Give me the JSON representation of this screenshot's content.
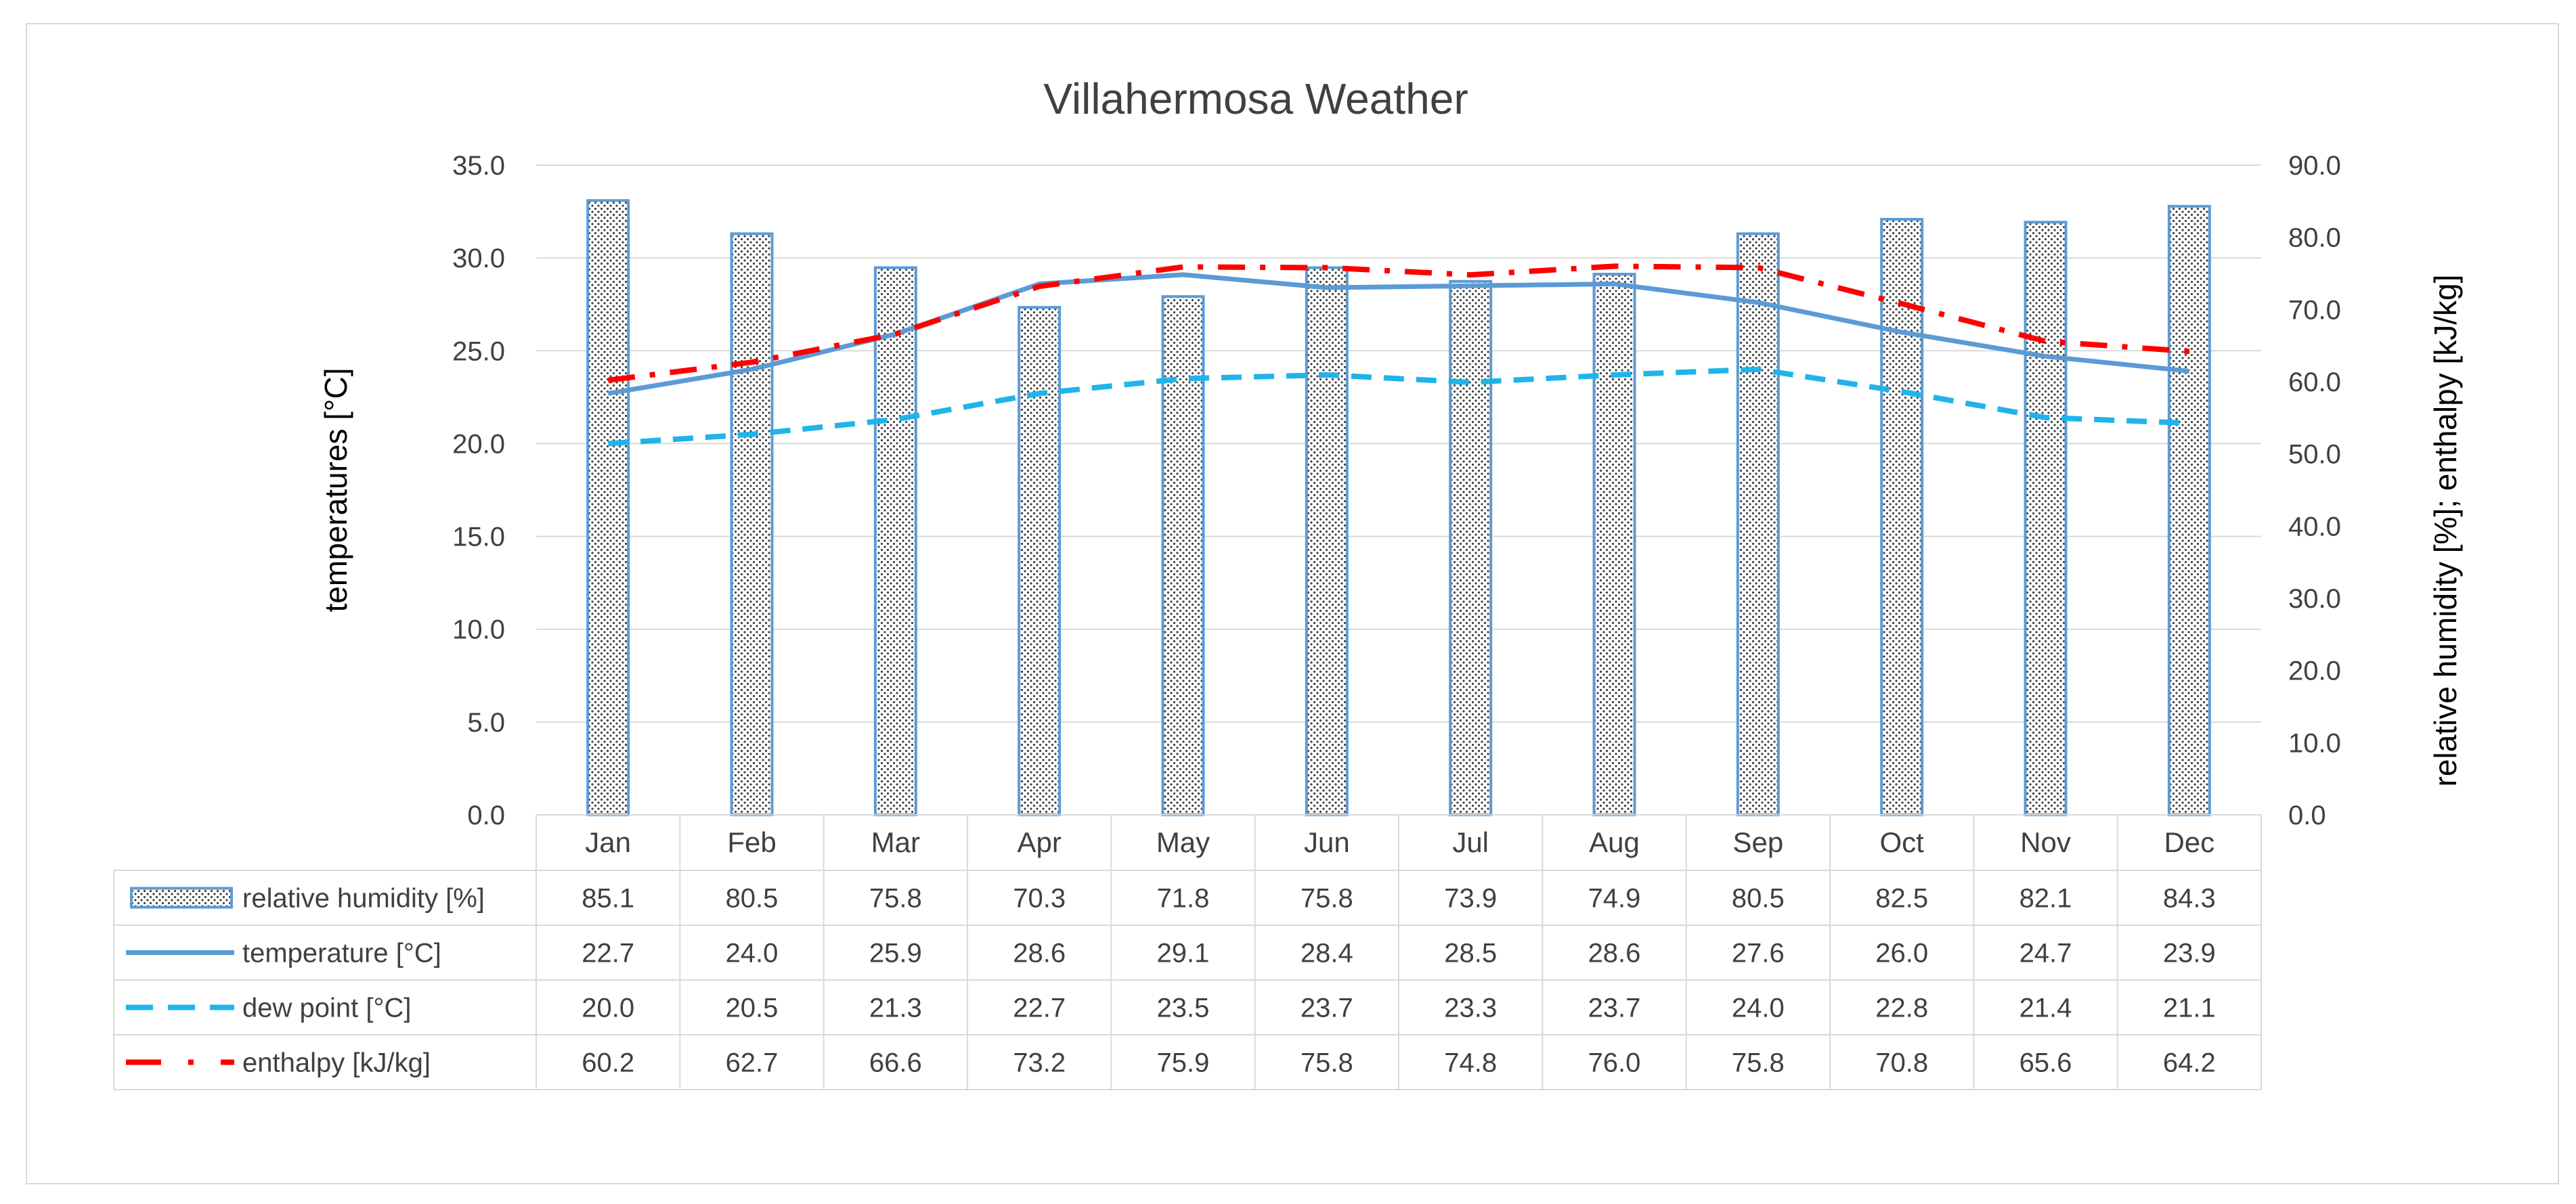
{
  "chart_data": {
    "type": "bar+line",
    "title": "Villahermosa Weather",
    "categories": [
      "Jan",
      "Feb",
      "Mar",
      "Apr",
      "May",
      "Jun",
      "Jul",
      "Aug",
      "Sep",
      "Oct",
      "Nov",
      "Dec"
    ],
    "y_left": {
      "label": "temperatures [°C]",
      "min": 0,
      "max": 35,
      "step": 5,
      "ticks": [
        "0.0",
        "5.0",
        "10.0",
        "15.0",
        "20.0",
        "25.0",
        "30.0",
        "35.0"
      ]
    },
    "y_right": {
      "label": "relative humidity [%];  enthalpy [kJ/kg]",
      "min": 0,
      "max": 90,
      "step": 10,
      "ticks": [
        "0.0",
        "10.0",
        "20.0",
        "30.0",
        "40.0",
        "50.0",
        "60.0",
        "70.0",
        "80.0",
        "90.0"
      ]
    },
    "grid": true,
    "series": [
      {
        "name": "relative humidity [%]",
        "kind": "bar",
        "axis": "right",
        "color": "#5b9bd5",
        "values": [
          85.1,
          80.5,
          75.8,
          70.3,
          71.8,
          75.8,
          73.9,
          74.9,
          80.5,
          82.5,
          82.1,
          84.3
        ],
        "labels": [
          "85.1",
          "80.5",
          "75.8",
          "70.3",
          "71.8",
          "75.8",
          "73.9",
          "74.9",
          "80.5",
          "82.5",
          "82.1",
          "84.3"
        ]
      },
      {
        "name": "temperature [°C]",
        "kind": "line",
        "axis": "left",
        "color": "#5b9bd5",
        "dash": "solid",
        "values": [
          22.7,
          24.0,
          25.9,
          28.6,
          29.1,
          28.4,
          28.5,
          28.6,
          27.6,
          26.0,
          24.7,
          23.9
        ],
        "labels": [
          "22.7",
          "24.0",
          "25.9",
          "28.6",
          "29.1",
          "28.4",
          "28.5",
          "28.6",
          "27.6",
          "26.0",
          "24.7",
          "23.9"
        ]
      },
      {
        "name": "dew point [°C]",
        "kind": "line",
        "axis": "left",
        "color": "#1fb4ea",
        "dash": "dash",
        "values": [
          20.0,
          20.5,
          21.3,
          22.7,
          23.5,
          23.7,
          23.3,
          23.7,
          24.0,
          22.8,
          21.4,
          21.1
        ],
        "labels": [
          "20.0",
          "20.5",
          "21.3",
          "22.7",
          "23.5",
          "23.7",
          "23.3",
          "23.7",
          "24.0",
          "22.8",
          "21.4",
          "21.1"
        ]
      },
      {
        "name": "enthalpy [kJ/kg]",
        "kind": "line",
        "axis": "right",
        "color": "#ff0000",
        "dash": "dashdot",
        "values": [
          60.2,
          62.7,
          66.6,
          73.2,
          75.9,
          75.8,
          74.8,
          76.0,
          75.8,
          70.8,
          65.6,
          64.2
        ],
        "labels": [
          "60.2",
          "62.7",
          "66.6",
          "73.2",
          "75.9",
          "75.8",
          "74.8",
          "76.0",
          "75.8",
          "70.8",
          "65.6",
          "64.2"
        ]
      }
    ]
  }
}
